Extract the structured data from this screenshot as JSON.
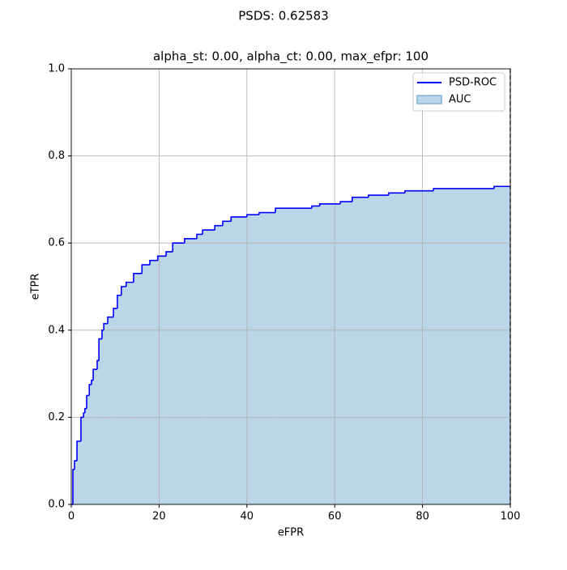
{
  "chart_data": {
    "type": "step",
    "title": "PSDS: 0.62583",
    "subtitle": "alpha_st: 0.00, alpha_ct: 0.00, max_efpr: 100",
    "xlabel": "eFPR",
    "ylabel": "eTPR",
    "xlim": [
      0,
      100
    ],
    "ylim": [
      0,
      1
    ],
    "xticks": [
      0,
      20,
      40,
      60,
      80,
      100
    ],
    "yticks": [
      {
        "value": 0,
        "label": "0.0"
      },
      {
        "value": 0.2,
        "label": "0.2"
      },
      {
        "value": 0.4,
        "label": "0.4"
      },
      {
        "value": 0.6,
        "label": "0.6"
      },
      {
        "value": 0.8,
        "label": "0.8"
      },
      {
        "value": 1,
        "label": "1.0"
      }
    ],
    "grid": true,
    "legend": "upper right",
    "series": [
      {
        "name": "PSD-ROC",
        "color": "#0000ff",
        "x": [
          0,
          0.37,
          0.74,
          1.3,
          2.2,
          2.8,
          3.1,
          3.5,
          4.1,
          4.6,
          5.0,
          5.9,
          6.3,
          7.0,
          7.4,
          8.3,
          9.6,
          10.5,
          11.4,
          12.5,
          14.2,
          16.1,
          17.9,
          19.7,
          21.6,
          23.1,
          25.8,
          28.6,
          29.9,
          32.7,
          34.5,
          36.4,
          40.0,
          42.8,
          46.5,
          54.8,
          56.6,
          61.3,
          64.0,
          67.7,
          72.3,
          76.0,
          82.5,
          96.3,
          100
        ],
        "values": [
          0,
          0.08,
          0.1,
          0.145,
          0.2,
          0.21,
          0.22,
          0.25,
          0.275,
          0.285,
          0.31,
          0.33,
          0.38,
          0.4,
          0.415,
          0.43,
          0.45,
          0.48,
          0.5,
          0.51,
          0.53,
          0.55,
          0.56,
          0.57,
          0.58,
          0.6,
          0.61,
          0.62,
          0.63,
          0.64,
          0.65,
          0.66,
          0.665,
          0.67,
          0.68,
          0.685,
          0.69,
          0.695,
          0.705,
          0.71,
          0.715,
          0.72,
          0.725,
          0.73,
          0.73
        ]
      }
    ],
    "fill": {
      "name": "AUC",
      "color": "#bbd6e9",
      "edge": "#7fb0d6"
    }
  }
}
